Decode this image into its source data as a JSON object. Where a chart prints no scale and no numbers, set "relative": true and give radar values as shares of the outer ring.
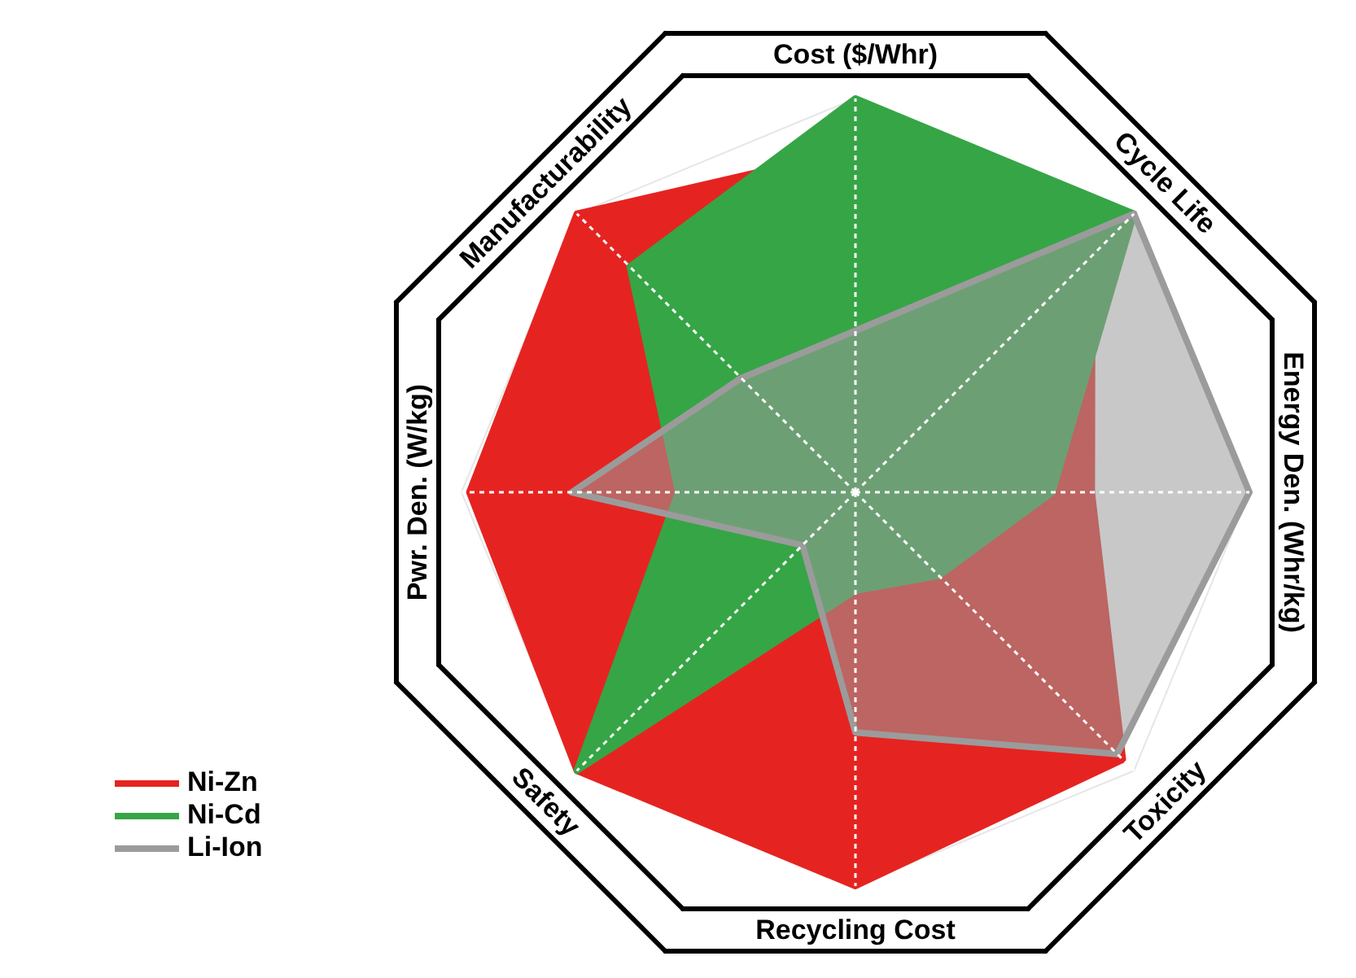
{
  "chart_data": {
    "type": "radar",
    "relative": true,
    "legend": "bottom left",
    "categories": [
      "Cost ($/Whr)",
      "Cycle Life",
      "Energy Den. (Whr/kg)",
      "Toxicity",
      "Recycling Cost",
      "Safety",
      "Pwr. Den. (W/kg)",
      "Manufacturability"
    ],
    "series": [
      {
        "name": "Ni-Zn",
        "color": "#e52421",
        "values": [
          0.87,
          0.85,
          0.6,
          0.96,
          1.0,
          1.0,
          0.98,
          1.0
        ]
      },
      {
        "name": "Ni-Cd",
        "color": "#36a546",
        "values": [
          1.0,
          1.0,
          0.5,
          0.3,
          0.25,
          1.0,
          0.45,
          0.81
        ]
      },
      {
        "name": "Li-Ion",
        "color": "#9b9b9b",
        "values": [
          0.41,
          1.0,
          1.0,
          0.94,
          0.61,
          0.19,
          0.72,
          0.41
        ]
      }
    ]
  }
}
